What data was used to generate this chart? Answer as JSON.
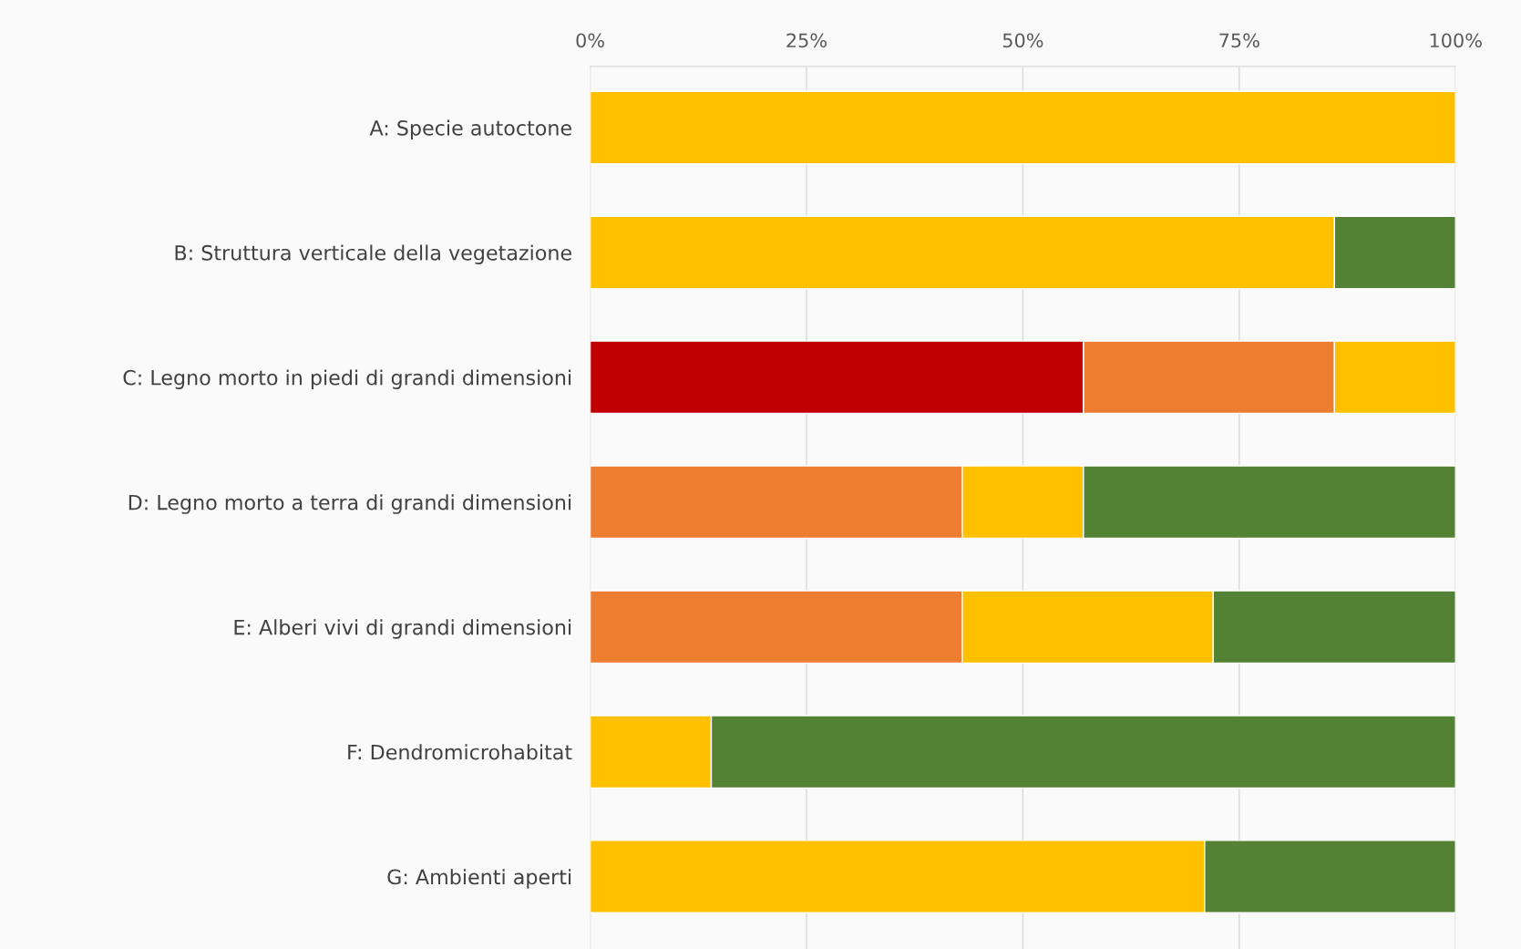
{
  "chart_data": {
    "type": "bar",
    "orientation": "horizontal",
    "stacked": true,
    "categories": [
      "A: Specie autoctone",
      "B: Struttura verticale della vegetazione",
      "C: Legno morto in piedi di grandi dimensioni",
      "D: Legno morto a terra di grandi dimensioni",
      "E: Alberi vivi di grandi dimensioni",
      "F: Dendromicrohabitat",
      "G: Ambienti aperti"
    ],
    "series": [
      {
        "color": "#c00000",
        "values": [
          null,
          null,
          57,
          null,
          null,
          null,
          null
        ]
      },
      {
        "color": "#ed7d31",
        "values": [
          null,
          null,
          29,
          43,
          43,
          null,
          null
        ]
      },
      {
        "color": "#ffc000",
        "values": [
          100,
          86,
          14,
          14,
          29,
          14,
          71
        ]
      },
      {
        "color": "#548235",
        "values": [
          null,
          14,
          null,
          43,
          28,
          86,
          29
        ]
      }
    ],
    "xlim": [
      0,
      100
    ],
    "xticks": [
      {
        "value": 0,
        "label": "0%"
      },
      {
        "value": 25,
        "label": "25%"
      },
      {
        "value": 50,
        "label": "50%"
      },
      {
        "value": 75,
        "label": "75%"
      },
      {
        "value": 100,
        "label": "100%"
      }
    ],
    "grid": "x"
  }
}
